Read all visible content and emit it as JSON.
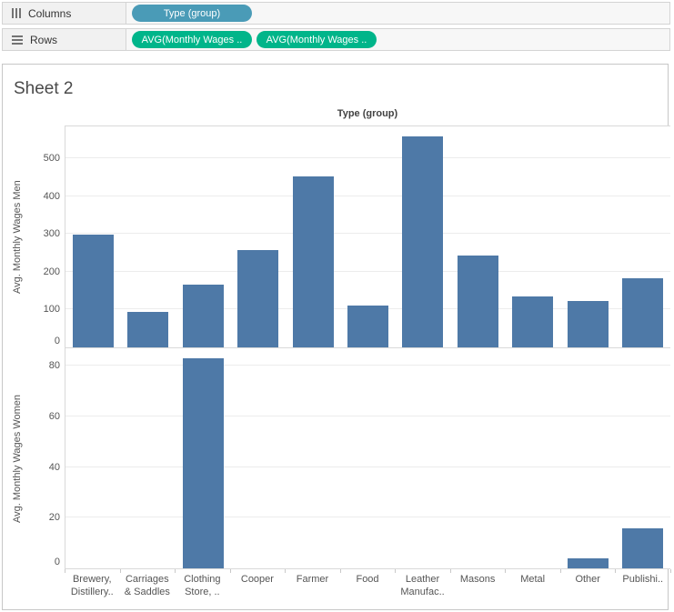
{
  "shelves": {
    "columns": {
      "label": "Columns",
      "pills": [
        {
          "label": "Type (group)",
          "kind": "dimension"
        }
      ]
    },
    "rows": {
      "label": "Rows",
      "pills": [
        {
          "label": "AVG(Monthly Wages ..",
          "kind": "measure"
        },
        {
          "label": "AVG(Monthly Wages ..",
          "kind": "measure"
        }
      ]
    }
  },
  "sheet": {
    "title": "Sheet 2",
    "column_header": "Type (group)"
  },
  "colors": {
    "bar": "#4e79a7",
    "dimension_pill": "#4a9bb7",
    "measure_pill": "#00b58a",
    "gridline": "#ececec",
    "axis_line": "#d9d9d9",
    "tick_text": "#555555"
  },
  "chart_data": {
    "type": "bar",
    "title": "Type (group)",
    "grid": true,
    "bar_color": "#4e79a7",
    "categories": [
      "Brewery, Distillery..",
      "Carriages & Saddles",
      "Clothing Store, ..",
      "Cooper",
      "Farmer",
      "Food",
      "Leather Manufac..",
      "Masons",
      "Metal",
      "Other",
      "Publishi.."
    ],
    "category_label_lines": [
      [
        "Brewery,",
        "Distillery.."
      ],
      [
        "Carriages",
        "& Saddles"
      ],
      [
        "Clothing",
        "Store, .."
      ],
      [
        "Cooper"
      ],
      [
        "Farmer"
      ],
      [
        "Food"
      ],
      [
        "Leather",
        "Manufac.."
      ],
      [
        "Masons"
      ],
      [
        "Metal"
      ],
      [
        "Other"
      ],
      [
        "Publishi.."
      ]
    ],
    "series": [
      {
        "name": "Avg. Monthly Wages Men",
        "values": [
          298,
          95,
          165,
          258,
          452,
          111,
          558,
          242,
          134,
          122,
          182
        ],
        "ylim": [
          0,
          585
        ],
        "yticks": [
          0,
          100,
          200,
          300,
          400,
          500
        ]
      },
      {
        "name": "Avg. Monthly Wages Women",
        "values": [
          0,
          0,
          83,
          0,
          0,
          0,
          0,
          0,
          0,
          4,
          16
        ],
        "ylim": [
          0,
          87
        ],
        "yticks": [
          0,
          20,
          40,
          60,
          80
        ]
      }
    ]
  }
}
